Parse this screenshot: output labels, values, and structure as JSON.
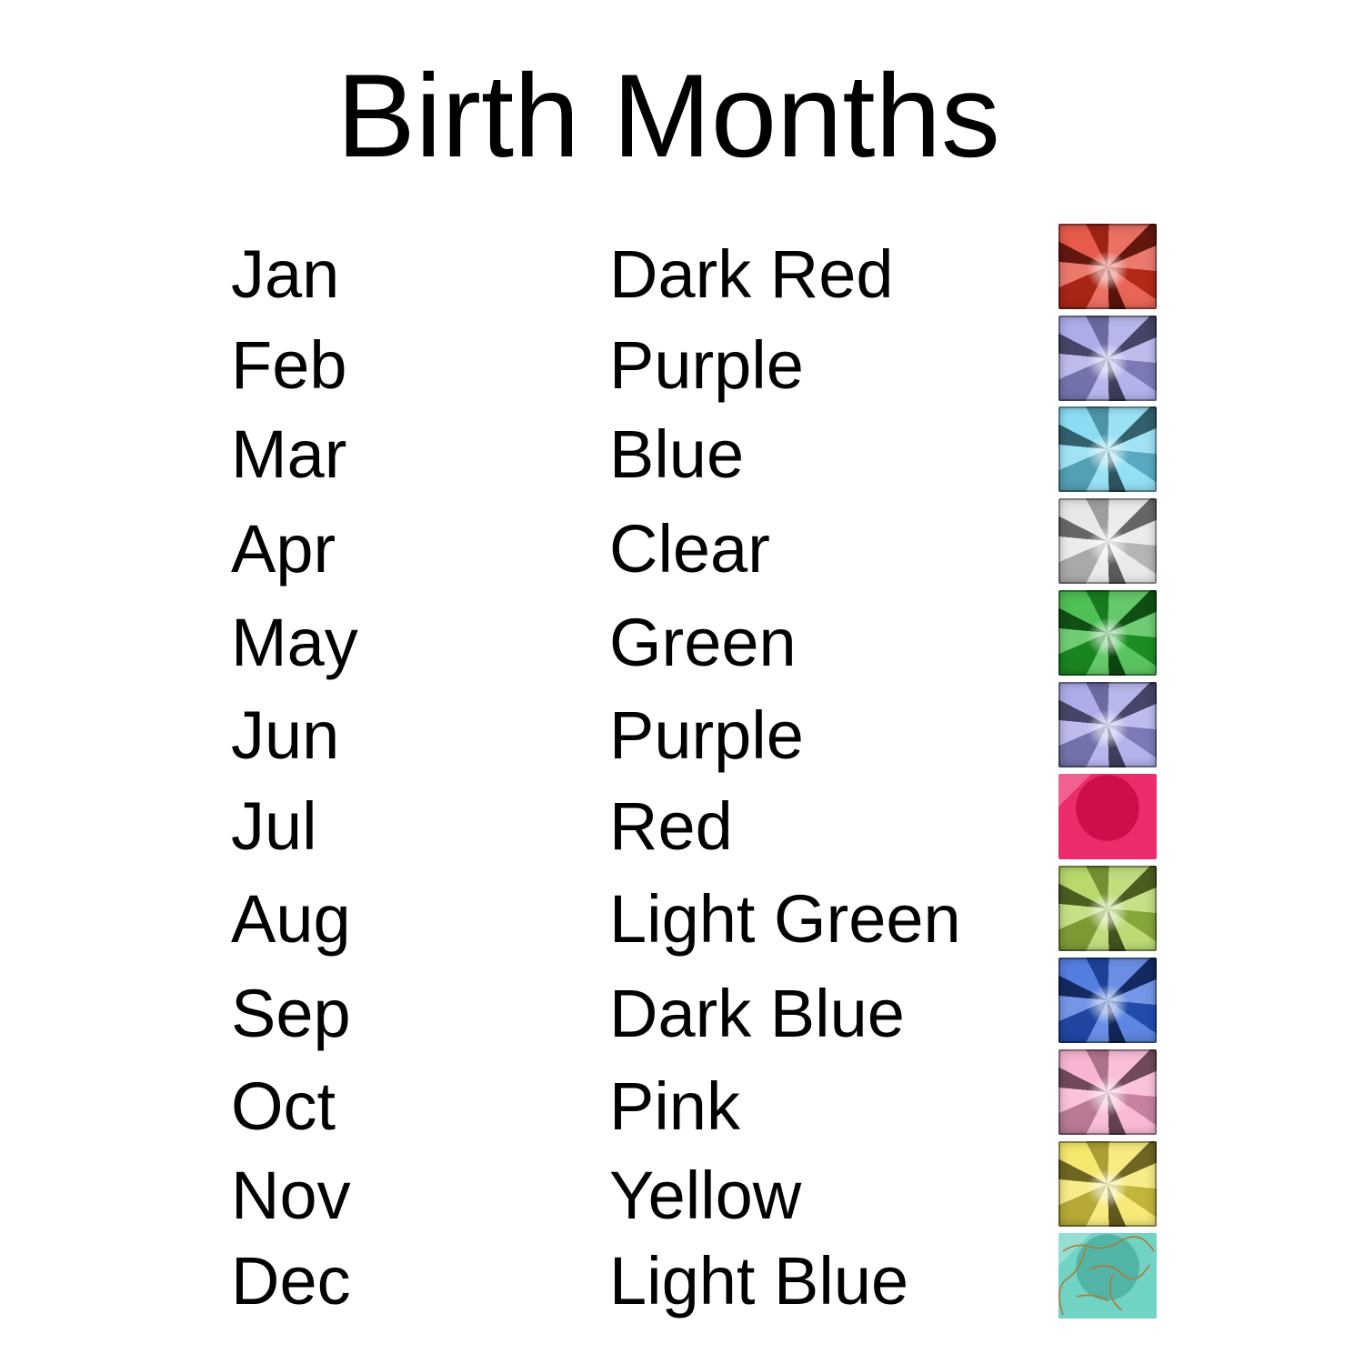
{
  "title": "Birth Months",
  "rows": [
    {
      "month": "Jan",
      "color": "Dark Red",
      "gem_color": "#e0321f"
    },
    {
      "month": "Feb",
      "color": "Purple",
      "gem_color": "#9a98e4"
    },
    {
      "month": "Mar",
      "color": "Blue",
      "gem_color": "#6fd4f0"
    },
    {
      "month": "Apr",
      "color": "Clear",
      "gem_color": "#e2e2e2"
    },
    {
      "month": "May",
      "color": "Green",
      "gem_color": "#22b02a"
    },
    {
      "month": "Jun",
      "color": "Purple",
      "gem_color": "#9a98e4"
    },
    {
      "month": "Jul",
      "color": "Red",
      "gem_color": "#ea0f55"
    },
    {
      "month": "Aug",
      "color": "Light Green",
      "gem_color": "#a6cf47"
    },
    {
      "month": "Sep",
      "color": "Dark Blue",
      "gem_color": "#2a5ed8"
    },
    {
      "month": "Oct",
      "color": "Pink",
      "gem_color": "#f7a3c8"
    },
    {
      "month": "Nov",
      "color": "Yellow",
      "gem_color": "#f3e24a"
    },
    {
      "month": "Dec",
      "color": "Light Blue",
      "gem_color": "#5ccdbc"
    }
  ]
}
